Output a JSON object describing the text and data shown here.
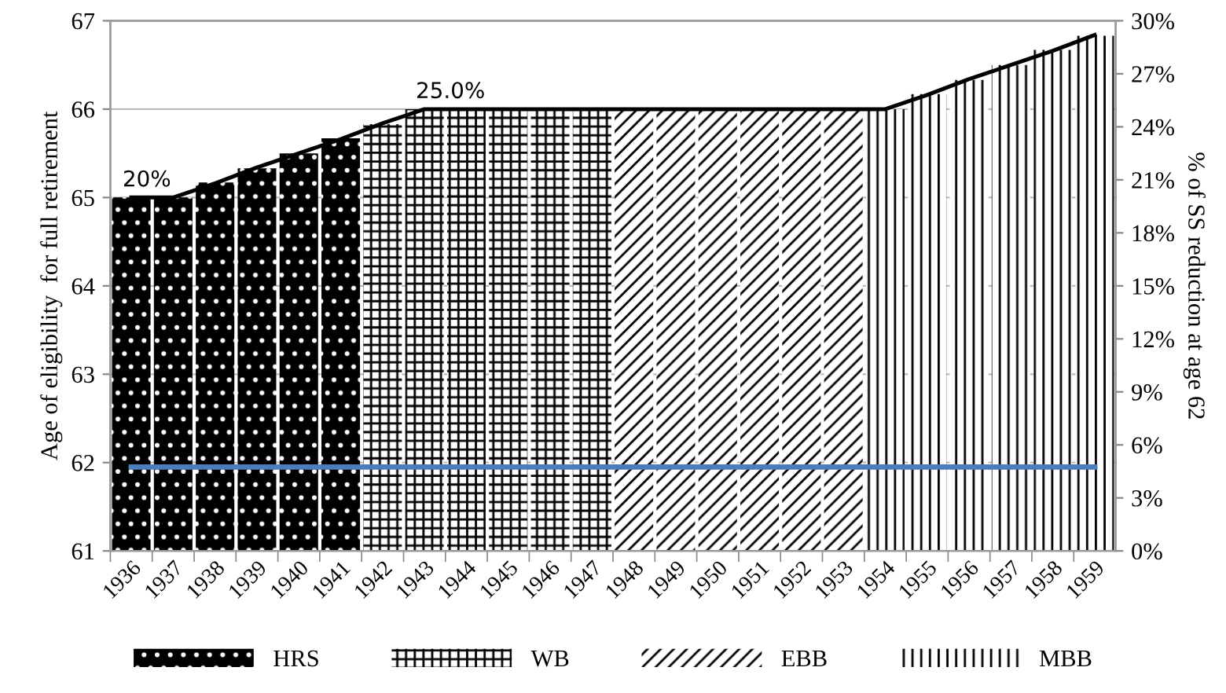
{
  "chart_data": {
    "type": "bar",
    "ylabel": "Age of eligibility  for full retirement",
    "y2label": "% of SS reduction at age 62",
    "categories": [
      "1936",
      "1937",
      "1938",
      "1939",
      "1940",
      "1941",
      "1942",
      "1943",
      "1944",
      "1945",
      "1946",
      "1947",
      "1948",
      "1949",
      "1950",
      "1951",
      "1952",
      "1953",
      "1954",
      "1955",
      "1956",
      "1957",
      "1958",
      "1959"
    ],
    "series": [
      {
        "name": "HRS",
        "color": "#000000",
        "values": [
          65,
          65,
          65.17,
          65.33,
          65.5,
          65.67,
          null,
          null,
          null,
          null,
          null,
          null,
          null,
          null,
          null,
          null,
          null,
          null,
          null,
          null,
          null,
          null,
          null,
          null
        ]
      },
      {
        "name": "WB",
        "color": "#000000",
        "values": [
          null,
          null,
          null,
          null,
          null,
          null,
          65.83,
          66,
          66,
          66,
          66,
          66,
          null,
          null,
          null,
          null,
          null,
          null,
          null,
          null,
          null,
          null,
          null,
          null
        ]
      },
      {
        "name": "EBB",
        "color": "#000000",
        "values": [
          null,
          null,
          null,
          null,
          null,
          null,
          null,
          null,
          null,
          null,
          null,
          null,
          66,
          66,
          66,
          66,
          66,
          66,
          null,
          null,
          null,
          null,
          null,
          null
        ]
      },
      {
        "name": "MBB",
        "color": "#000000",
        "values": [
          null,
          null,
          null,
          null,
          null,
          null,
          null,
          null,
          null,
          null,
          null,
          null,
          null,
          null,
          null,
          null,
          null,
          null,
          66,
          66.17,
          66.33,
          66.5,
          66.67,
          66.83
        ]
      },
      {
        "type": "line",
        "axis": "y2",
        "color": "#000000",
        "values": [
          20,
          20,
          20.8,
          21.7,
          22.5,
          23.3,
          24.2,
          25,
          25,
          25,
          25,
          25,
          25,
          25,
          25,
          25,
          25,
          25,
          25,
          25.8,
          26.7,
          27.5,
          28.3,
          29.2
        ]
      },
      {
        "type": "line",
        "color": "#4a7ebb",
        "values": [
          61.95,
          61.95,
          61.95,
          61.95,
          61.95,
          61.95,
          61.95,
          61.95,
          61.95,
          61.95,
          61.95,
          61.95,
          61.95,
          61.95,
          61.95,
          61.95,
          61.95,
          61.95,
          61.95,
          61.95,
          61.95,
          61.95,
          61.95,
          61.95
        ]
      }
    ],
    "ylim": [
      61,
      67
    ],
    "yticks": [
      61,
      62,
      63,
      64,
      65,
      66,
      67
    ],
    "y2lim": [
      0,
      30
    ],
    "y2ticks": [
      {
        "value": 0,
        "label": "0%"
      },
      {
        "value": 3,
        "label": "3%"
      },
      {
        "value": 6,
        "label": "6%"
      },
      {
        "value": 9,
        "label": "9%"
      },
      {
        "value": 12,
        "label": "12%"
      },
      {
        "value": 15,
        "label": "15%"
      },
      {
        "value": 18,
        "label": "18%"
      },
      {
        "value": 21,
        "label": "21%"
      },
      {
        "value": 24,
        "label": "24%"
      },
      {
        "value": 27,
        "label": "27%"
      },
      {
        "value": 30,
        "label": "30%"
      }
    ],
    "annotations": [
      "20%",
      "25.0%"
    ],
    "grid": "y",
    "legend": "bottom"
  }
}
